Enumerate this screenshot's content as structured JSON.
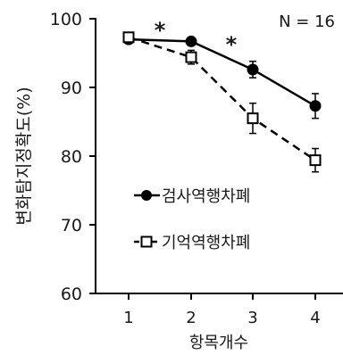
{
  "chart_data": {
    "type": "line",
    "title": "",
    "xlabel": "항목개수",
    "ylabel": "변화탐지정확도(%)",
    "categories": [
      "1",
      "2",
      "3",
      "4"
    ],
    "ylim": [
      60,
      100
    ],
    "yticks": [
      "100",
      "90",
      "80",
      "70",
      "60"
    ],
    "annotation": "N = 16",
    "significance": [
      {
        "x": 1.5,
        "label": "*"
      },
      {
        "x": 2.65,
        "label": "*"
      }
    ],
    "series": [
      {
        "name": "검사역행차폐",
        "marker": "filled-circle",
        "style": "solid",
        "color": "#000000",
        "values": [
          97.0,
          96.7,
          92.6,
          87.3
        ],
        "errors": [
          0.4,
          0.5,
          1.2,
          1.8
        ]
      },
      {
        "name": "기억역행차폐",
        "marker": "open-square",
        "style": "dashed",
        "color": "#000000",
        "values": [
          97.3,
          94.4,
          85.5,
          79.4
        ],
        "errors": [
          0.4,
          1.0,
          2.2,
          1.7
        ]
      }
    ],
    "legend_position": "center-left",
    "grid": false
  }
}
